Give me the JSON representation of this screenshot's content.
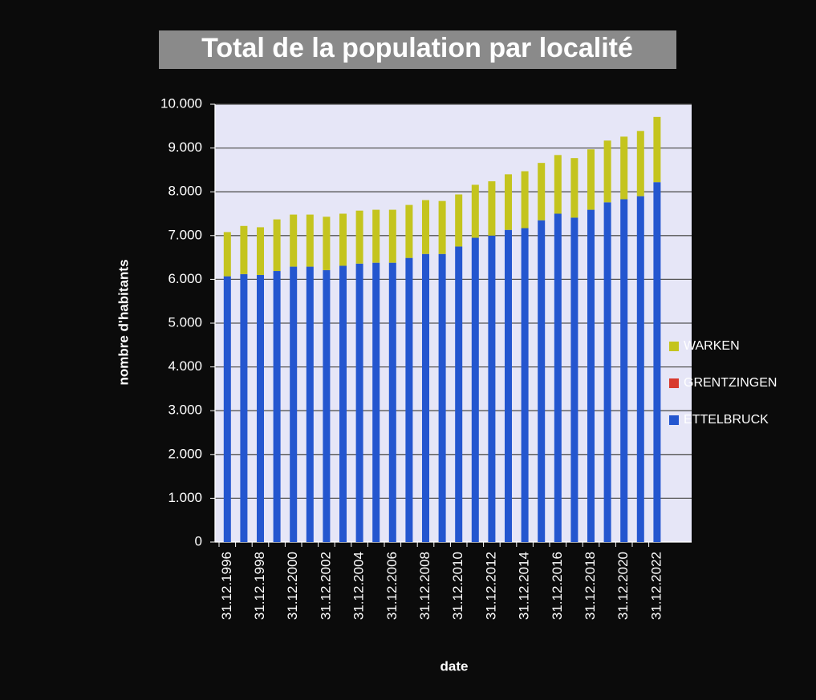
{
  "chart_data": {
    "type": "stacked-bar",
    "title": "Total de la population par localité",
    "y_label": "nombre d'habitants",
    "x_label": "date",
    "categories": [
      "31.12.1996",
      null,
      "31.12.1998",
      null,
      "31.12.2000",
      null,
      "31.12.2002",
      null,
      "31.12.2004",
      null,
      "31.12.2006",
      null,
      "31.12.2008",
      null,
      "31.12.2010",
      null,
      "31.12.2012",
      null,
      "31.12.2014",
      null,
      "31.12.2016",
      null,
      "31.12.2018",
      null,
      "31.12.2020",
      null,
      "31.12.2022"
    ],
    "series": [
      {
        "name": "ETTELBRUCK",
        "color": "#2456cf",
        "values": [
          6070,
          6120,
          6100,
          6190,
          6290,
          6290,
          6210,
          6310,
          6360,
          6380,
          6380,
          6490,
          6580,
          6580,
          6750,
          6950,
          7000,
          7130,
          7170,
          7350,
          7500,
          7410,
          7590,
          7760,
          7830,
          7900,
          8220
        ]
      },
      {
        "name": "GRENTZINGEN",
        "color": "#d83a2e",
        "values": [
          0,
          0,
          0,
          0,
          0,
          0,
          0,
          0,
          0,
          0,
          0,
          0,
          0,
          0,
          0,
          0,
          0,
          0,
          0,
          0,
          0,
          0,
          0,
          0,
          0,
          0,
          0
        ]
      },
      {
        "name": "WARKEN",
        "color": "#c4c41e",
        "values": [
          1010,
          1100,
          1090,
          1180,
          1190,
          1190,
          1220,
          1190,
          1210,
          1210,
          1210,
          1210,
          1230,
          1210,
          1190,
          1210,
          1240,
          1270,
          1300,
          1310,
          1340,
          1360,
          1380,
          1410,
          1430,
          1490,
          1490
        ]
      }
    ],
    "ylim": [
      0,
      10000
    ],
    "yticks": [
      0,
      {
        "value": 1000,
        "label": "1.000"
      },
      {
        "value": 2000,
        "label": "2.000"
      },
      {
        "value": 3000,
        "label": "3.000"
      },
      {
        "value": 4000,
        "label": "4.000"
      },
      {
        "value": 5000,
        "label": "5.000"
      },
      {
        "value": 6000,
        "label": "6.000"
      },
      {
        "value": 7000,
        "label": "7.000"
      },
      {
        "value": 8000,
        "label": "8.000"
      },
      {
        "value": 9000,
        "label": "9.000"
      },
      {
        "value": 10000,
        "label": "10.000"
      }
    ],
    "grid": true,
    "legend": "right"
  }
}
